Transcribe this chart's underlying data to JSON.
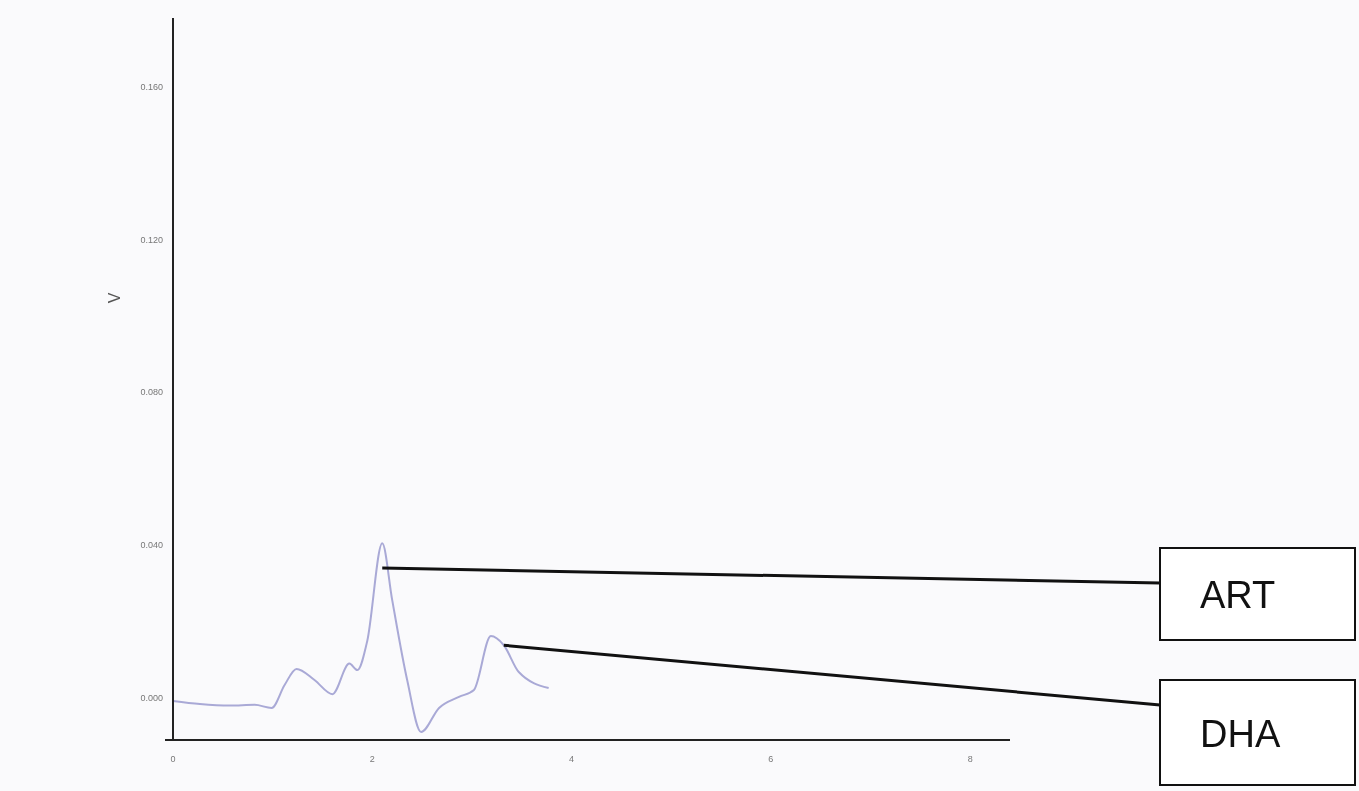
{
  "chart_data": {
    "type": "line",
    "ylabel": "V",
    "x": [
      0,
      0.27,
      0.57,
      0.82,
      0.99,
      1.12,
      1.24,
      1.42,
      1.6,
      1.77,
      1.85,
      1.95,
      2.1,
      2.2,
      2.35,
      2.49,
      2.67,
      2.87,
      3.02,
      3.19,
      3.32,
      3.47,
      3.77
    ],
    "series": [
      {
        "color": "#a9a9d6",
        "values": [
          -0.0008,
          -0.0016,
          -0.002,
          -0.0018,
          -0.0026,
          0.0034,
          0.0076,
          0.0047,
          0.001,
          0.009,
          0.0073,
          0.015,
          0.0405,
          0.0256,
          0.0047,
          -0.0089,
          -0.0026,
          0.0003,
          0.0021,
          0.0162,
          0.0138,
          0.0068,
          0.0026
        ]
      }
    ],
    "xlim": [
      0,
      8.4
    ],
    "xticks": [
      0,
      2,
      4,
      6,
      8
    ],
    "ylim": [
      -0.011,
      0.178
    ],
    "yticks": [
      {
        "value": 0,
        "label": "0.000"
      },
      {
        "value": 0.04,
        "label": "0.040"
      },
      {
        "value": 0.08,
        "label": "0.080"
      },
      {
        "value": 0.12,
        "label": "0.120"
      },
      {
        "value": 0.16,
        "label": "0.160"
      }
    ],
    "grid": false,
    "marker": "none",
    "line_style": "solid",
    "annotations": [
      {
        "text": "ART",
        "x": 2.1,
        "y": 0.034
      },
      {
        "text": "DHA",
        "x": 3.32,
        "y": 0.0138
      }
    ]
  }
}
